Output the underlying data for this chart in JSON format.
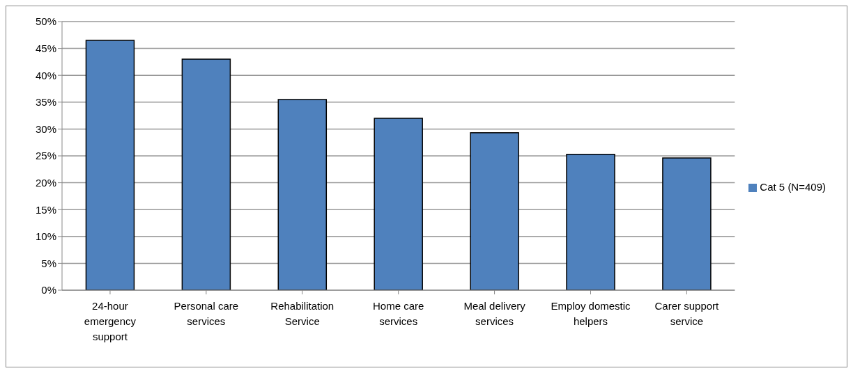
{
  "chart_data": {
    "type": "bar",
    "categories": [
      "24-hour emergency support",
      "Personal care services",
      "Rehabilitation Service",
      "Home care services",
      "Meal delivery services",
      "Employ domestic helpers",
      "Carer support service"
    ],
    "series": [
      {
        "name": "Cat 5 (N=409)",
        "color": "#4f81bd",
        "values": [
          46.5,
          43.0,
          35.5,
          32.0,
          29.3,
          25.3,
          24.6
        ]
      }
    ],
    "ylim": [
      0,
      50
    ],
    "yticks": [
      {
        "value": 0,
        "label": "0%"
      },
      {
        "value": 5,
        "label": "5%"
      },
      {
        "value": 10,
        "label": "10%"
      },
      {
        "value": 15,
        "label": "15%"
      },
      {
        "value": 20,
        "label": "20%"
      },
      {
        "value": 25,
        "label": "25%"
      },
      {
        "value": 30,
        "label": "30%"
      },
      {
        "value": 35,
        "label": "35%"
      },
      {
        "value": 40,
        "label": "40%"
      },
      {
        "value": 45,
        "label": "45%"
      },
      {
        "value": 50,
        "label": "50%"
      }
    ],
    "grid": "y",
    "legend": "right"
  }
}
